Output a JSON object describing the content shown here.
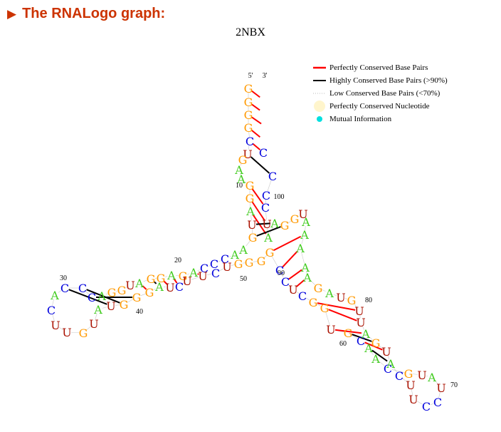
{
  "header": {
    "arrow_icon": "play-arrow-icon",
    "title": "The RNALogo graph:"
  },
  "subtitle": "2NBX",
  "legend": {
    "items": [
      {
        "label": "Perfectly Conserved Base Pairs",
        "swatch": "red-line",
        "color": "#ff0000"
      },
      {
        "label": "Highly Conserved Base Pairs (>90%)",
        "swatch": "black-line",
        "color": "#000000"
      },
      {
        "label": "Low Conserved Base Pairs (<70%)",
        "swatch": "dotted-line",
        "color": "#bbbbbb"
      },
      {
        "label": "Perfectly Conserved Nucleotide",
        "swatch": "cream-circle",
        "color": "#fff5cc"
      },
      {
        "label": "Mutual Information",
        "swatch": "cyan-dot",
        "color": "#00e0e0"
      }
    ]
  },
  "colors": {
    "A": "#44cc22",
    "C": "#0000dd",
    "G": "#ff9900",
    "U": "#aa1100",
    "header": "#cc3300"
  },
  "diagram": {
    "end_labels": [
      "5'",
      "3'"
    ],
    "position_labels": [
      "10",
      "100",
      "20",
      "30",
      "40",
      "50",
      "90",
      "80",
      "60",
      "70"
    ],
    "nucleotides": [
      "G",
      "G",
      "G",
      "G",
      "C",
      "U",
      "G",
      "A",
      "A",
      "G",
      "G",
      "A",
      "U",
      "G",
      "A",
      "A",
      "C",
      "C",
      "C",
      "A",
      "G",
      "A",
      "G",
      "G",
      "A",
      "U",
      "G",
      "G",
      "A",
      "C",
      "C",
      "C",
      "A",
      "C",
      "U",
      "U",
      "G",
      "U",
      "A",
      "U",
      "G",
      "G",
      "G",
      "A",
      "U",
      "C",
      "U",
      "U",
      "C",
      "U",
      "G",
      "G",
      "G",
      "G",
      "C",
      "C",
      "U",
      "C",
      "G",
      "G",
      "U",
      "G",
      "C",
      "A",
      "A",
      "C",
      "G",
      "U",
      "A",
      "U",
      "C",
      "C",
      "U",
      "U",
      "C",
      "A",
      "U",
      "G",
      "A",
      "U",
      "U",
      "G",
      "U",
      "A",
      "G",
      "A",
      "A",
      "A",
      "A",
      "A",
      "U",
      "G",
      "G",
      "A",
      "A",
      "U",
      "C",
      "C",
      "C",
      "C"
    ]
  }
}
